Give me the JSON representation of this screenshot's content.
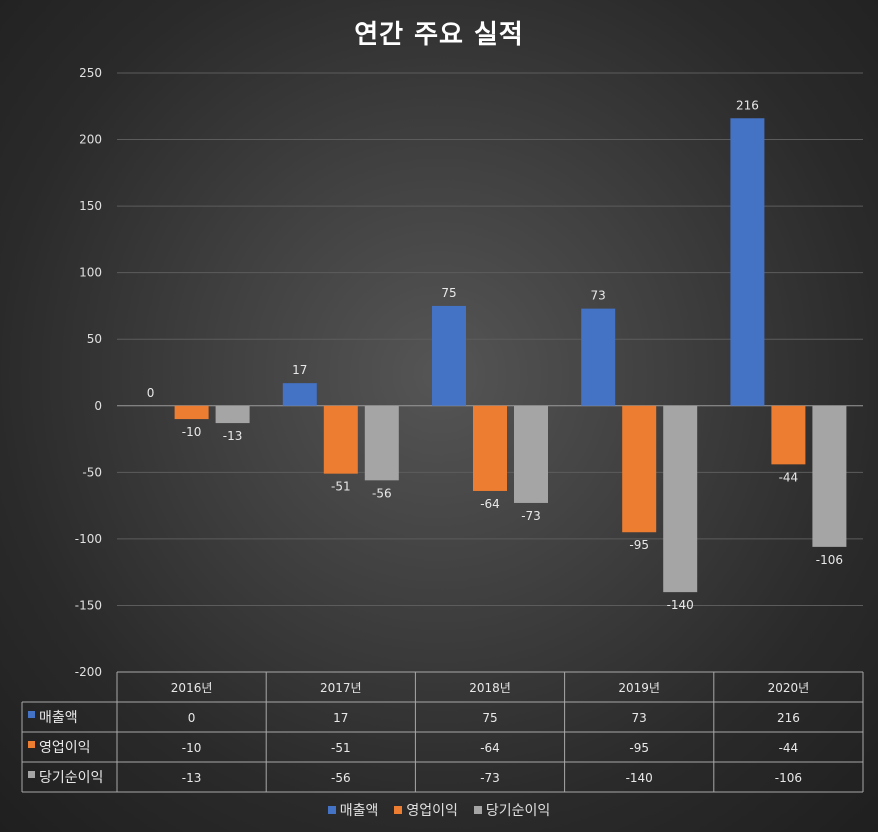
{
  "chart_data": {
    "type": "bar",
    "title": "연간 주요 실적",
    "categories": [
      "2016년",
      "2017년",
      "2018년",
      "2019년",
      "2020년"
    ],
    "series": [
      {
        "name": "매출액",
        "color": "#4472C4",
        "values": [
          0,
          17,
          75,
          73,
          216
        ]
      },
      {
        "name": "영업이익",
        "color": "#ED7D31",
        "values": [
          -10,
          -51,
          -64,
          -95,
          -44
        ]
      },
      {
        "name": "당기순이익",
        "color": "#A5A5A5",
        "values": [
          -13,
          -56,
          -73,
          -140,
          -106
        ]
      }
    ],
    "ylim": [
      -200,
      250
    ],
    "yticks": [
      250,
      200,
      150,
      100,
      50,
      0,
      -50,
      -100,
      -150,
      -200
    ],
    "grid": true,
    "data_table": true,
    "legend": "bottom"
  }
}
